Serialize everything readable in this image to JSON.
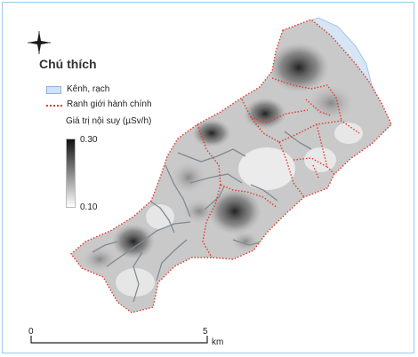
{
  "legend": {
    "title": "Chú thích",
    "canal_label": "Kênh, rạch",
    "boundary_label": "Ranh giới hành chính",
    "ramp_title": "Giá trị nội suy (µSv/h)",
    "ramp_max": "0.30",
    "ramp_min": "0.10",
    "ramp_colors": {
      "high": "#111111",
      "low": "#ffffff"
    }
  },
  "scale_bar": {
    "start_label": "0",
    "mid_label": "5",
    "unit": "km"
  },
  "north_arrow_icon": "north-arrow-icon",
  "colors": {
    "boundary": "#e0392b",
    "canal": "#cfe3f7",
    "river": "#d6e6f5"
  }
}
